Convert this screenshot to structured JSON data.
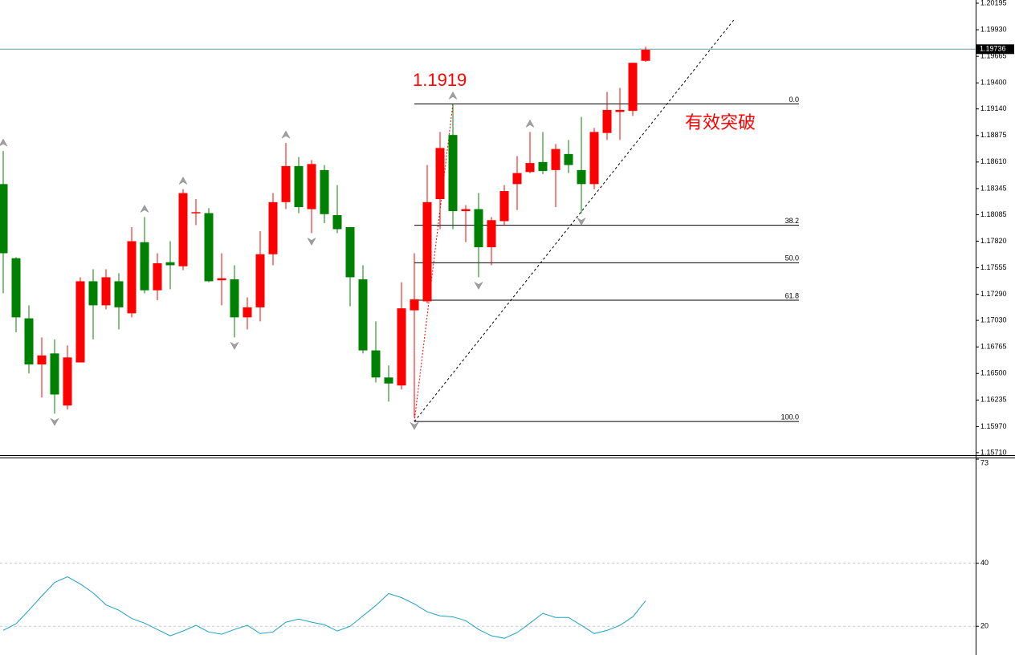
{
  "chart_data": [
    {
      "type": "candlestick",
      "open": [
        1.1839,
        1.1765,
        1.1705,
        1.1659,
        1.167,
        1.1618,
        1.1661,
        1.1742,
        1.1718,
        1.1742,
        1.171,
        1.1781,
        1.1733,
        1.1761,
        1.1757,
        1.181,
        1.181,
        1.1743,
        1.1744,
        1.1706,
        1.1716,
        1.1769,
        1.1821,
        1.1857,
        1.1814,
        1.1853,
        1.1808,
        1.1796,
        1.1744,
        1.1673,
        1.1646,
        1.1638,
        1.1713,
        1.1722,
        1.1824,
        1.1888,
        1.1812,
        1.1814,
        1.1776,
        1.1802,
        1.1839,
        1.1851,
        1.1861,
        1.1853,
        1.1869,
        1.1853,
        1.1839,
        1.189,
        1.1911,
        1.1912,
        1.1962
      ],
      "high": [
        1.1872,
        1.1766,
        1.1718,
        1.1686,
        1.1684,
        1.1678,
        1.1746,
        1.1754,
        1.1754,
        1.175,
        1.1796,
        1.1806,
        1.177,
        1.1782,
        1.1834,
        1.1824,
        1.1815,
        1.177,
        1.1758,
        1.1726,
        1.1792,
        1.183,
        1.188,
        1.1866,
        1.1863,
        1.1858,
        1.1838,
        1.1796,
        1.1758,
        1.1702,
        1.1658,
        1.1741,
        1.177,
        1.1858,
        1.1891,
        1.1919,
        1.1818,
        1.183,
        1.1806,
        1.1838,
        1.1867,
        1.1891,
        1.1891,
        1.1879,
        1.1883,
        1.1906,
        1.1895,
        1.1931,
        1.1935,
        1.196,
        1.1976
      ],
      "low": [
        1.173,
        1.1691,
        1.165,
        1.1626,
        1.161,
        1.1614,
        1.1661,
        1.1684,
        1.1714,
        1.1694,
        1.1706,
        1.173,
        1.1723,
        1.1734,
        1.1753,
        1.1798,
        1.1741,
        1.1718,
        1.1686,
        1.1694,
        1.1702,
        1.1758,
        1.1814,
        1.181,
        1.179,
        1.18,
        1.179,
        1.1717,
        1.167,
        1.1641,
        1.1622,
        1.1634,
        1.1606,
        1.172,
        1.1794,
        1.1794,
        1.1781,
        1.1746,
        1.1758,
        1.1798,
        1.1813,
        1.185,
        1.1849,
        1.1816,
        1.185,
        1.181,
        1.1834,
        1.1883,
        1.1883,
        1.1907,
        1.1961
      ],
      "close": [
        1.177,
        1.1706,
        1.1659,
        1.1668,
        1.1629,
        1.1666,
        1.1742,
        1.1718,
        1.1746,
        1.1716,
        1.1782,
        1.1733,
        1.176,
        1.1758,
        1.183,
        1.1811,
        1.1742,
        1.1745,
        1.1706,
        1.1716,
        1.1769,
        1.1821,
        1.1857,
        1.1816,
        1.1859,
        1.1809,
        1.1794,
        1.1746,
        1.1673,
        1.1646,
        1.164,
        1.1715,
        1.1724,
        1.1821,
        1.1875,
        1.1812,
        1.1814,
        1.1776,
        1.1803,
        1.1832,
        1.185,
        1.186,
        1.1852,
        1.1874,
        1.1858,
        1.1839,
        1.1891,
        1.1913,
        1.1913,
        1.196,
        1.1973
      ],
      "up_color": "#ff0000",
      "down_color": "#008000",
      "ylim": [
        1.15677,
        1.20227
      ],
      "yticks": [
        1.20195,
        {
          "value": 1.1993,
          "label": "1.19930"
        },
        1.19665,
        {
          "value": 1.194,
          "label": "1.19400"
        },
        {
          "value": 1.1914,
          "label": "1.19140"
        },
        1.18875,
        {
          "value": 1.1861,
          "label": "1.18610"
        },
        1.18345,
        1.18085,
        {
          "value": 1.1782,
          "label": "1.17820"
        },
        1.17555,
        {
          "value": 1.1729,
          "label": "1.17290"
        },
        {
          "value": 1.1703,
          "label": "1.17030"
        },
        1.16765,
        {
          "value": 1.165,
          "label": "1.16500"
        },
        1.16235,
        {
          "value": 1.1597,
          "label": "1.15970"
        },
        {
          "value": 1.1571,
          "label": "1.15710"
        }
      ],
      "last_price": 1.19736,
      "fractals_up": [
        0,
        11,
        14,
        22,
        35,
        41
      ],
      "fractals_down": [
        4,
        18,
        24,
        32,
        37,
        45
      ],
      "fibonacci": {
        "x": [
          32,
          35
        ],
        "prices": [
          1.1602,
          1.1919
        ],
        "levels": [
          {
            "value": 0,
            "label": "0.0"
          },
          {
            "value": 38.2,
            "label": "38.2"
          },
          {
            "value": 50,
            "label": "50.0"
          },
          {
            "value": 61.8,
            "label": "61.8"
          },
          {
            "value": 100,
            "label": "100.0"
          }
        ]
      },
      "trendline": {
        "x": [
          32,
          56.94
        ],
        "y": [
          1.1602,
          1.2004
        ]
      },
      "annotations": [
        "1.1919",
        "有效突破"
      ]
    },
    {
      "type": "line",
      "values": [
        18.7,
        20.8,
        25.1,
        29.6,
        33.9,
        35.7,
        33.4,
        30.6,
        26.8,
        25.1,
        22.5,
        21.0,
        19.0,
        17.0,
        18.5,
        20.3,
        18.2,
        17.5,
        19.0,
        20.3,
        17.7,
        18.2,
        21.3,
        22.3,
        21.3,
        20.5,
        18.5,
        20.0,
        23.3,
        26.6,
        30.4,
        29.1,
        27.1,
        24.6,
        23.3,
        23.0,
        21.8,
        19.0,
        17.0,
        16.2,
        18.0,
        21.0,
        24.1,
        22.8,
        22.8,
        20.3,
        17.7,
        18.7,
        20.3,
        23.0,
        28.1
      ],
      "color": "#1ba1c6",
      "ylim": [
        10.9,
        73
      ],
      "yticks": [
        73,
        40,
        20
      ]
    }
  ]
}
